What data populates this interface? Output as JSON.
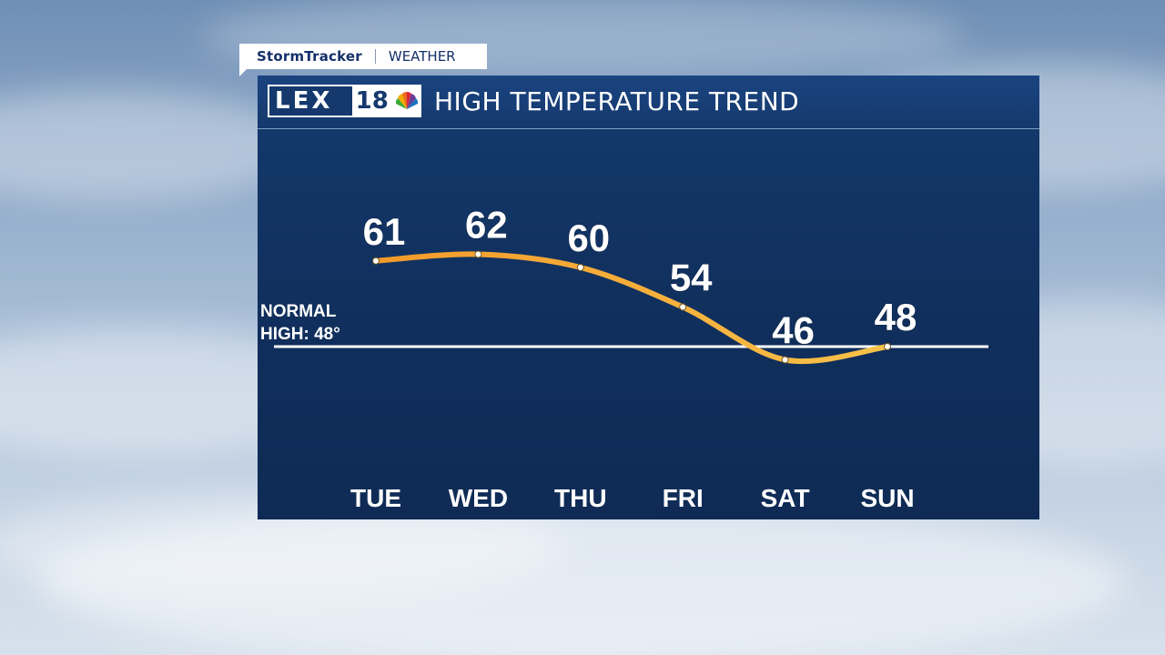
{
  "banner": {
    "brand": "StormTracker",
    "section": "WEATHER"
  },
  "header": {
    "logo_text": "LEX",
    "logo_number": "18",
    "title": "HIGH TEMPERATURE TREND"
  },
  "reference": {
    "line1": "NORMAL",
    "line2": "HIGH: 48°",
    "value": 48
  },
  "chart_data": {
    "type": "line",
    "title": "HIGH TEMPERATURE TREND",
    "categories": [
      "TUE",
      "WED",
      "THU",
      "FRI",
      "SAT",
      "SUN"
    ],
    "values": [
      61,
      62,
      60,
      54,
      46,
      48
    ],
    "reference_line": {
      "label": "NORMAL HIGH: 48°",
      "value": 48
    },
    "grid": false,
    "colors": {
      "line_start": "#f39a2a",
      "line_end": "#f7c24a",
      "panel": "#12335f",
      "text": "#ffffff"
    }
  }
}
